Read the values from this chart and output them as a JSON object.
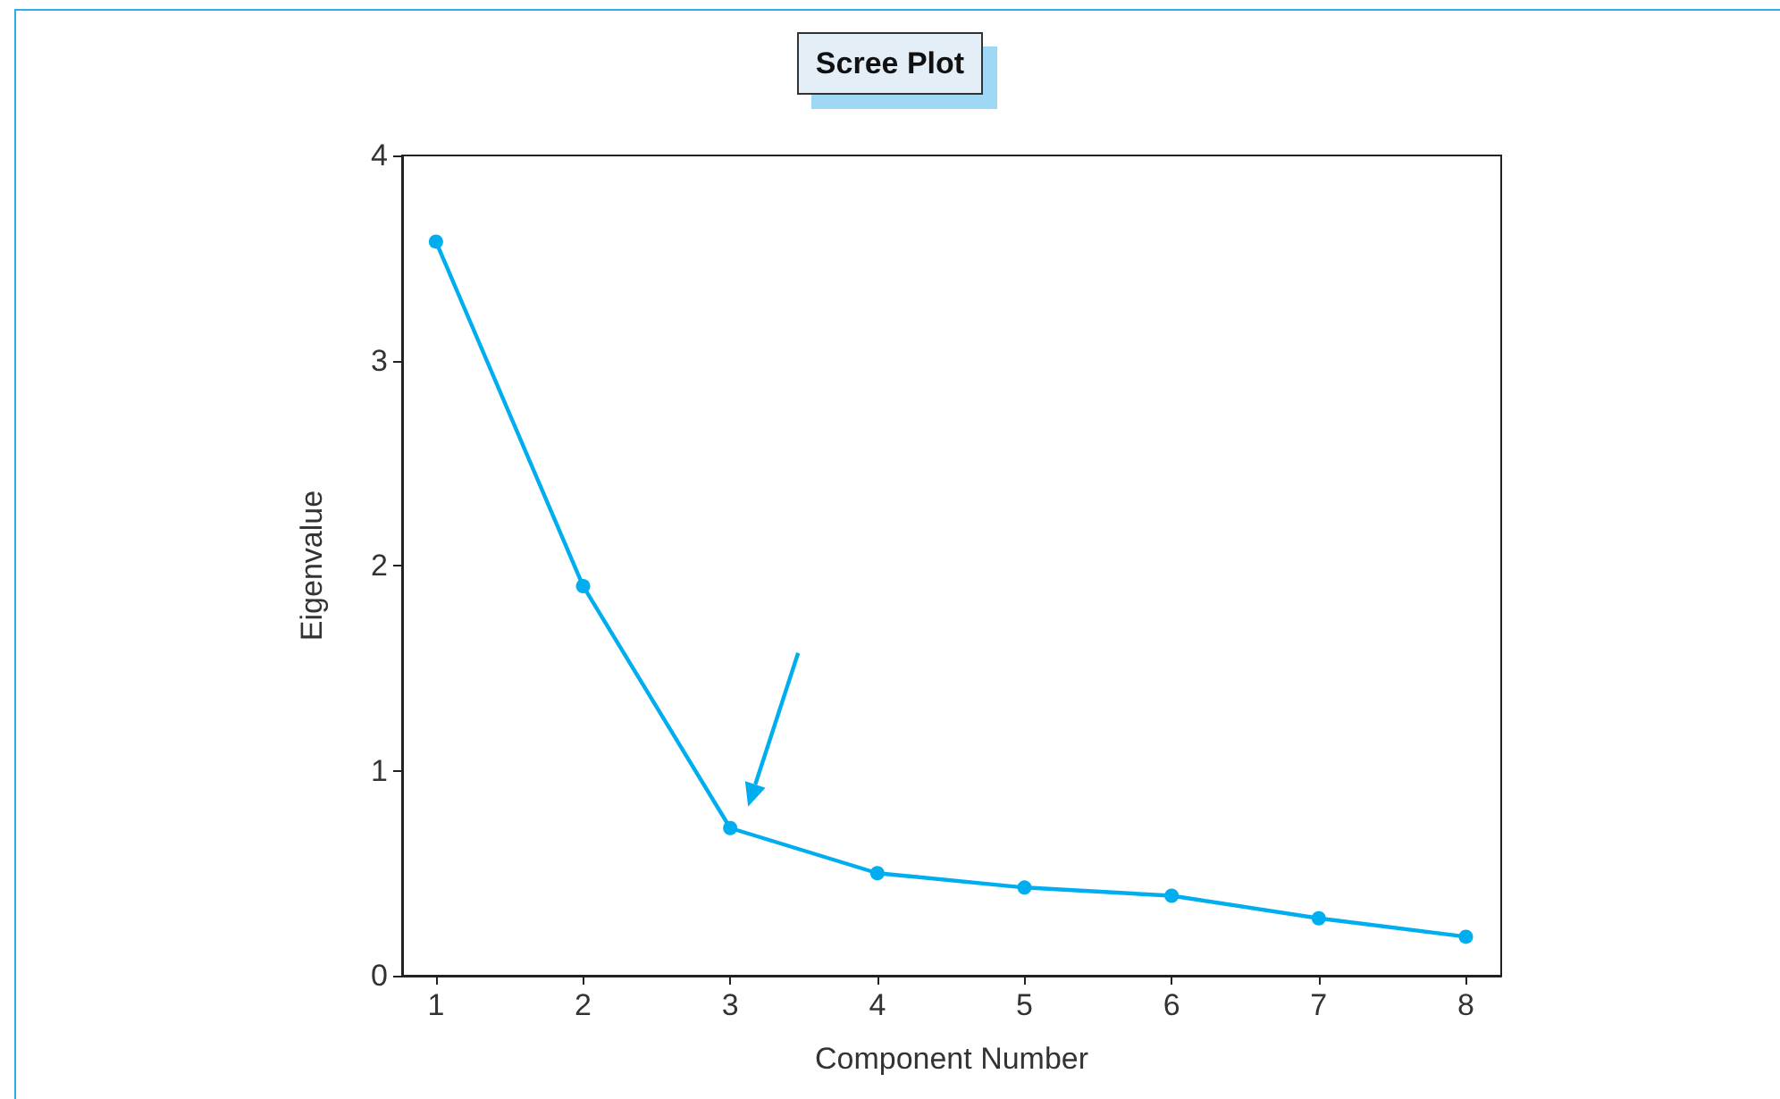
{
  "chart_data": {
    "type": "line",
    "title": "Scree Plot",
    "xlabel": "Component Number",
    "ylabel": "Eigenvalue",
    "x": [
      1,
      2,
      3,
      4,
      5,
      6,
      7,
      8
    ],
    "series": [
      {
        "color": "#00aeef",
        "values": [
          3.58,
          1.9,
          0.72,
          0.5,
          0.43,
          0.39,
          0.28,
          0.19
        ]
      }
    ],
    "xlim": [
      0.77,
      8.24
    ],
    "xticks": [
      1,
      2,
      3,
      4,
      5,
      6,
      7,
      8
    ],
    "ylim": [
      0,
      4
    ],
    "yticks": [
      0,
      1,
      2,
      3,
      4
    ],
    "grid": false,
    "marker": "circle",
    "line_style": "solid"
  }
}
